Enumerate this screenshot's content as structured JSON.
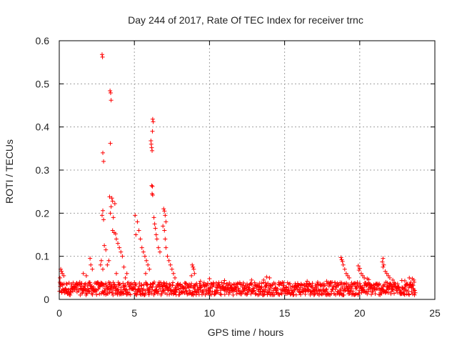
{
  "chart_data": {
    "type": "scatter",
    "title": "Day 244 of 2017, Rate Of TEC Index for receiver trnc",
    "xlabel": "GPS time / hours",
    "ylabel": "ROTI / TECUs",
    "xlim": [
      0,
      25
    ],
    "ylim": [
      0,
      0.6
    ],
    "xticks": [
      0,
      5,
      10,
      15,
      20,
      25
    ],
    "xtick_labels": [
      "0",
      "5",
      "10",
      "15",
      "20",
      "25"
    ],
    "yticks": [
      0,
      0.1,
      0.2,
      0.3,
      0.4,
      0.5,
      0.6
    ],
    "ytick_labels": [
      "0",
      "0.1",
      "0.2",
      "0.3",
      "0.4",
      "0.5",
      "0.6"
    ],
    "grid": true,
    "marker": "+",
    "series_color": "#ff0000",
    "series": [
      {
        "name": "ROTI",
        "points": [
          [
            2.85,
            0.568
          ],
          [
            2.88,
            0.562
          ],
          [
            3.38,
            0.484
          ],
          [
            3.42,
            0.479
          ],
          [
            3.45,
            0.462
          ],
          [
            3.4,
            0.362
          ],
          [
            2.9,
            0.34
          ],
          [
            2.95,
            0.32
          ],
          [
            6.22,
            0.418
          ],
          [
            6.25,
            0.412
          ],
          [
            6.2,
            0.39
          ],
          [
            6.1,
            0.368
          ],
          [
            6.12,
            0.36
          ],
          [
            6.15,
            0.352
          ],
          [
            6.18,
            0.345
          ],
          [
            6.15,
            0.264
          ],
          [
            6.2,
            0.262
          ],
          [
            6.18,
            0.245
          ],
          [
            6.22,
            0.242
          ],
          [
            3.35,
            0.238
          ],
          [
            3.5,
            0.235
          ],
          [
            3.55,
            0.228
          ],
          [
            3.7,
            0.222
          ],
          [
            3.45,
            0.215
          ],
          [
            2.9,
            0.206
          ],
          [
            2.85,
            0.195
          ],
          [
            2.95,
            0.185
          ],
          [
            3.4,
            0.2
          ],
          [
            3.6,
            0.19
          ],
          [
            3.55,
            0.16
          ],
          [
            3.65,
            0.155
          ],
          [
            3.75,
            0.152
          ],
          [
            3.8,
            0.14
          ],
          [
            3.9,
            0.13
          ],
          [
            4.0,
            0.12
          ],
          [
            4.1,
            0.11
          ],
          [
            4.2,
            0.1
          ],
          [
            3.0,
            0.125
          ],
          [
            3.1,
            0.115
          ],
          [
            2.8,
            0.09
          ],
          [
            2.75,
            0.08
          ],
          [
            2.9,
            0.07
          ],
          [
            3.2,
            0.08
          ],
          [
            3.3,
            0.09
          ],
          [
            4.3,
            0.075
          ],
          [
            4.5,
            0.06
          ],
          [
            4.4,
            0.05
          ],
          [
            3.8,
            0.06
          ],
          [
            5.05,
            0.195
          ],
          [
            5.2,
            0.18
          ],
          [
            5.3,
            0.16
          ],
          [
            5.1,
            0.15
          ],
          [
            5.4,
            0.14
          ],
          [
            5.5,
            0.12
          ],
          [
            5.6,
            0.11
          ],
          [
            5.7,
            0.1
          ],
          [
            5.8,
            0.09
          ],
          [
            5.9,
            0.08
          ],
          [
            6.0,
            0.07
          ],
          [
            5.75,
            0.06
          ],
          [
            6.3,
            0.19
          ],
          [
            6.35,
            0.175
          ],
          [
            6.4,
            0.165
          ],
          [
            6.45,
            0.15
          ],
          [
            6.5,
            0.14
          ],
          [
            6.6,
            0.12
          ],
          [
            6.7,
            0.11
          ],
          [
            6.95,
            0.21
          ],
          [
            7.0,
            0.205
          ],
          [
            7.05,
            0.195
          ],
          [
            7.1,
            0.18
          ],
          [
            6.9,
            0.17
          ],
          [
            7.0,
            0.16
          ],
          [
            7.05,
            0.14
          ],
          [
            7.1,
            0.12
          ],
          [
            7.2,
            0.1
          ],
          [
            7.3,
            0.09
          ],
          [
            7.4,
            0.08
          ],
          [
            7.5,
            0.07
          ],
          [
            7.6,
            0.06
          ],
          [
            7.7,
            0.05
          ],
          [
            8.85,
            0.08
          ],
          [
            8.9,
            0.075
          ],
          [
            8.95,
            0.07
          ],
          [
            9.0,
            0.06
          ],
          [
            8.8,
            0.055
          ],
          [
            2.05,
            0.095
          ],
          [
            2.1,
            0.08
          ],
          [
            2.2,
            0.07
          ],
          [
            1.6,
            0.06
          ],
          [
            1.8,
            0.055
          ],
          [
            0.1,
            0.07
          ],
          [
            0.15,
            0.065
          ],
          [
            0.2,
            0.06
          ],
          [
            0.3,
            0.055
          ],
          [
            0.05,
            0.05
          ],
          [
            18.75,
            0.097
          ],
          [
            18.8,
            0.092
          ],
          [
            18.85,
            0.088
          ],
          [
            18.9,
            0.08
          ],
          [
            19.0,
            0.07
          ],
          [
            19.1,
            0.06
          ],
          [
            19.2,
            0.055
          ],
          [
            19.3,
            0.05
          ],
          [
            19.9,
            0.078
          ],
          [
            20.0,
            0.072
          ],
          [
            19.95,
            0.068
          ],
          [
            20.1,
            0.06
          ],
          [
            20.2,
            0.055
          ],
          [
            20.3,
            0.05
          ],
          [
            20.5,
            0.048
          ],
          [
            20.6,
            0.046
          ],
          [
            21.55,
            0.095
          ],
          [
            21.5,
            0.087
          ],
          [
            21.6,
            0.08
          ],
          [
            21.55,
            0.075
          ],
          [
            21.7,
            0.065
          ],
          [
            21.8,
            0.06
          ],
          [
            21.9,
            0.055
          ],
          [
            22.0,
            0.05
          ],
          [
            22.2,
            0.045
          ],
          [
            13.8,
            0.052
          ],
          [
            14.0,
            0.05
          ],
          [
            13.6,
            0.045
          ],
          [
            12.8,
            0.045
          ],
          [
            16.5,
            0.042
          ],
          [
            17.2,
            0.04
          ],
          [
            17.8,
            0.042
          ],
          [
            10.0,
            0.048
          ],
          [
            11.0,
            0.044
          ],
          [
            9.4,
            0.042
          ],
          [
            23.3,
            0.05
          ],
          [
            23.5,
            0.048
          ],
          [
            23.6,
            0.045
          ],
          [
            23.0,
            0.043
          ],
          [
            22.8,
            0.044
          ]
        ],
        "baseline": {
          "x_range": [
            0.0,
            23.7
          ],
          "y_min": 0.01,
          "y_max": 0.04,
          "density_per_hour": 44
        }
      }
    ]
  }
}
